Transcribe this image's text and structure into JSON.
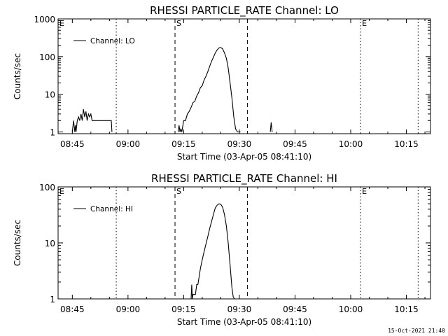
{
  "footer": {
    "timestamp": "15-Oct-2021 21:40"
  },
  "chart_data": [
    {
      "type": "line",
      "title": "RHESSI PARTICLE_RATE Channel: LO",
      "xlabel": "Start Time (03-Apr-05 08:41:10)",
      "ylabel": "Counts/sec",
      "y_scale": "log",
      "ylim": [
        0.9,
        1000
      ],
      "xlim": [
        "08:41:10",
        "10:21:30"
      ],
      "x_tick_labels": [
        "08:45",
        "09:00",
        "09:15",
        "09:30",
        "09:45",
        "10:00",
        "10:15"
      ],
      "y_tick_labels": [
        "1",
        "10",
        "100",
        "1000"
      ],
      "y_ticks": [
        1,
        10,
        100,
        1000
      ],
      "grid": false,
      "legend": "top-left",
      "series": [
        {
          "name": "Channel: LO",
          "x": [
            "08:45:00",
            "08:45:20",
            "08:45:40",
            "08:45:50",
            "08:46:00",
            "08:46:20",
            "08:46:40",
            "08:47:00",
            "08:47:20",
            "08:47:40",
            "08:48:00",
            "08:48:20",
            "08:48:40",
            "08:49:00",
            "08:49:20",
            "08:49:40",
            "08:50:00",
            "08:50:20",
            "08:50:40",
            "08:51:00",
            "08:51:30",
            "08:52:00",
            "08:53:00",
            "08:54:00",
            "08:55:00",
            "08:55:30",
            "08:55:40",
            "09:13:30",
            "09:13:45",
            "09:14:00",
            "09:14:15",
            "09:14:30",
            "09:15:00",
            "09:15:30",
            "09:16:00",
            "09:16:30",
            "09:17:00",
            "09:17:30",
            "09:18:00",
            "09:18:30",
            "09:19:00",
            "09:19:30",
            "09:20:00",
            "09:20:30",
            "09:21:00",
            "09:21:30",
            "09:22:00",
            "09:22:30",
            "09:23:00",
            "09:23:30",
            "09:24:00",
            "09:24:30",
            "09:25:00",
            "09:25:30",
            "09:26:00",
            "09:26:30",
            "09:27:00",
            "09:27:30",
            "09:28:00",
            "09:28:30",
            "09:29:00",
            "09:29:30",
            "09:30:00",
            "09:30:20",
            "09:38:20",
            "09:38:35",
            "09:38:50"
          ],
          "y": [
            1,
            2,
            1,
            1.5,
            1,
            2,
            2.5,
            2,
            3,
            2,
            4,
            2.5,
            3.5,
            2,
            3,
            2.5,
            3,
            2,
            2,
            2,
            2,
            2,
            2,
            2,
            2,
            2,
            1,
            1,
            1.5,
            1,
            1.2,
            1,
            2,
            2,
            3,
            3.5,
            4.5,
            6,
            6.5,
            9,
            11,
            15,
            17,
            24,
            30,
            40,
            55,
            75,
            95,
            125,
            150,
            170,
            175,
            160,
            125,
            90,
            50,
            20,
            8,
            2.5,
            1.2,
            1,
            1,
            1,
            1,
            1.8,
            1
          ]
        }
      ],
      "markers": [
        {
          "label": "",
          "time": "08:56:50",
          "style": "dotted"
        },
        {
          "label": "S",
          "time": "09:12:40",
          "style": "dashed"
        },
        {
          "label": "",
          "time": "09:32:10",
          "style": "dashed"
        },
        {
          "label": "E",
          "time": "10:02:40",
          "style": "dotted"
        },
        {
          "label": "",
          "time": "10:18:10",
          "style": "dotted"
        }
      ],
      "corner_labels": [
        "E"
      ]
    },
    {
      "type": "line",
      "title": "RHESSI PARTICLE_RATE Channel: HI",
      "xlabel": "Start Time (03-Apr-05 08:41:10)",
      "ylabel": "Counts/sec",
      "y_scale": "log",
      "ylim": [
        1,
        100
      ],
      "xlim": [
        "08:41:10",
        "10:21:30"
      ],
      "x_tick_labels": [
        "08:45",
        "09:00",
        "09:15",
        "09:30",
        "09:45",
        "10:00",
        "10:15"
      ],
      "y_tick_labels": [
        "1",
        "10",
        "100"
      ],
      "y_ticks": [
        1,
        10,
        100
      ],
      "grid": false,
      "legend": "top-left",
      "series": [
        {
          "name": "Channel: HI",
          "x": [
            "09:17:00",
            "09:17:10",
            "09:17:20",
            "09:17:30",
            "09:17:50",
            "09:18:10",
            "09:18:30",
            "09:18:50",
            "09:19:10",
            "09:19:30",
            "09:20:00",
            "09:20:30",
            "09:21:00",
            "09:21:30",
            "09:22:00",
            "09:22:30",
            "09:23:00",
            "09:23:30",
            "09:24:00",
            "09:24:30",
            "09:25:00",
            "09:25:30",
            "09:26:00",
            "09:26:30",
            "09:27:00",
            "09:27:30",
            "09:28:00",
            "09:28:20",
            "09:28:40"
          ],
          "y": [
            1,
            1.8,
            1,
            1.2,
            1.2,
            1.2,
            1.8,
            1.8,
            2.5,
            3.5,
            5,
            7,
            9.5,
            13,
            18,
            24,
            32,
            42,
            47,
            50,
            49,
            43,
            32,
            20,
            10,
            4,
            1.6,
            1.1,
            1
          ]
        }
      ],
      "markers": [
        {
          "label": "",
          "time": "08:56:50",
          "style": "dotted"
        },
        {
          "label": "S",
          "time": "09:12:40",
          "style": "dashed"
        },
        {
          "label": "",
          "time": "09:32:10",
          "style": "dashed"
        },
        {
          "label": "E",
          "time": "10:02:40",
          "style": "dotted"
        },
        {
          "label": "",
          "time": "10:18:10",
          "style": "dotted"
        }
      ],
      "corner_labels": [
        "E"
      ]
    }
  ]
}
